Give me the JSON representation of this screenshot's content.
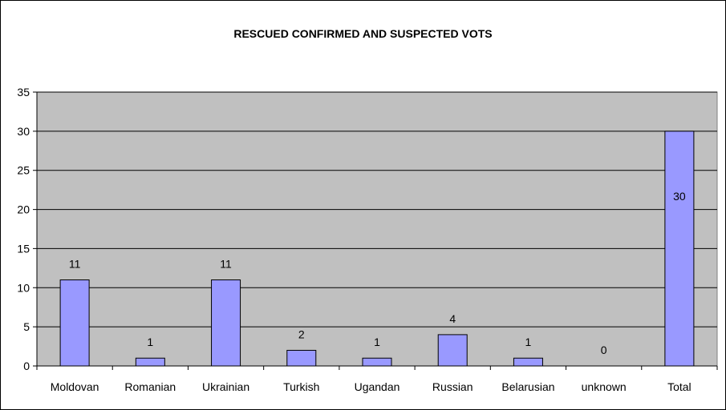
{
  "chart_data": {
    "type": "bar",
    "title": "RESCUED CONFIRMED AND SUSPECTED VOTS",
    "categories": [
      "Moldovan",
      "Romanian",
      "Ukrainian",
      "Turkish",
      "Ugandan",
      "Russian",
      "Belarusian",
      "unknown",
      "Total"
    ],
    "values": [
      11,
      1,
      11,
      2,
      1,
      4,
      1,
      0,
      30
    ],
    "data_labels": [
      "11",
      "1",
      "11",
      "2",
      "1",
      "4",
      "1",
      "0",
      "30"
    ],
    "ylim": [
      0,
      35
    ],
    "yticks": [
      0,
      5,
      10,
      15,
      20,
      25,
      30,
      35
    ],
    "grid": true,
    "legend": "none",
    "colors": {
      "bar_fill": "#9999ff",
      "bar_stroke": "#000000",
      "plot_background": "#c0c0c0",
      "gridline": "#000000"
    }
  }
}
